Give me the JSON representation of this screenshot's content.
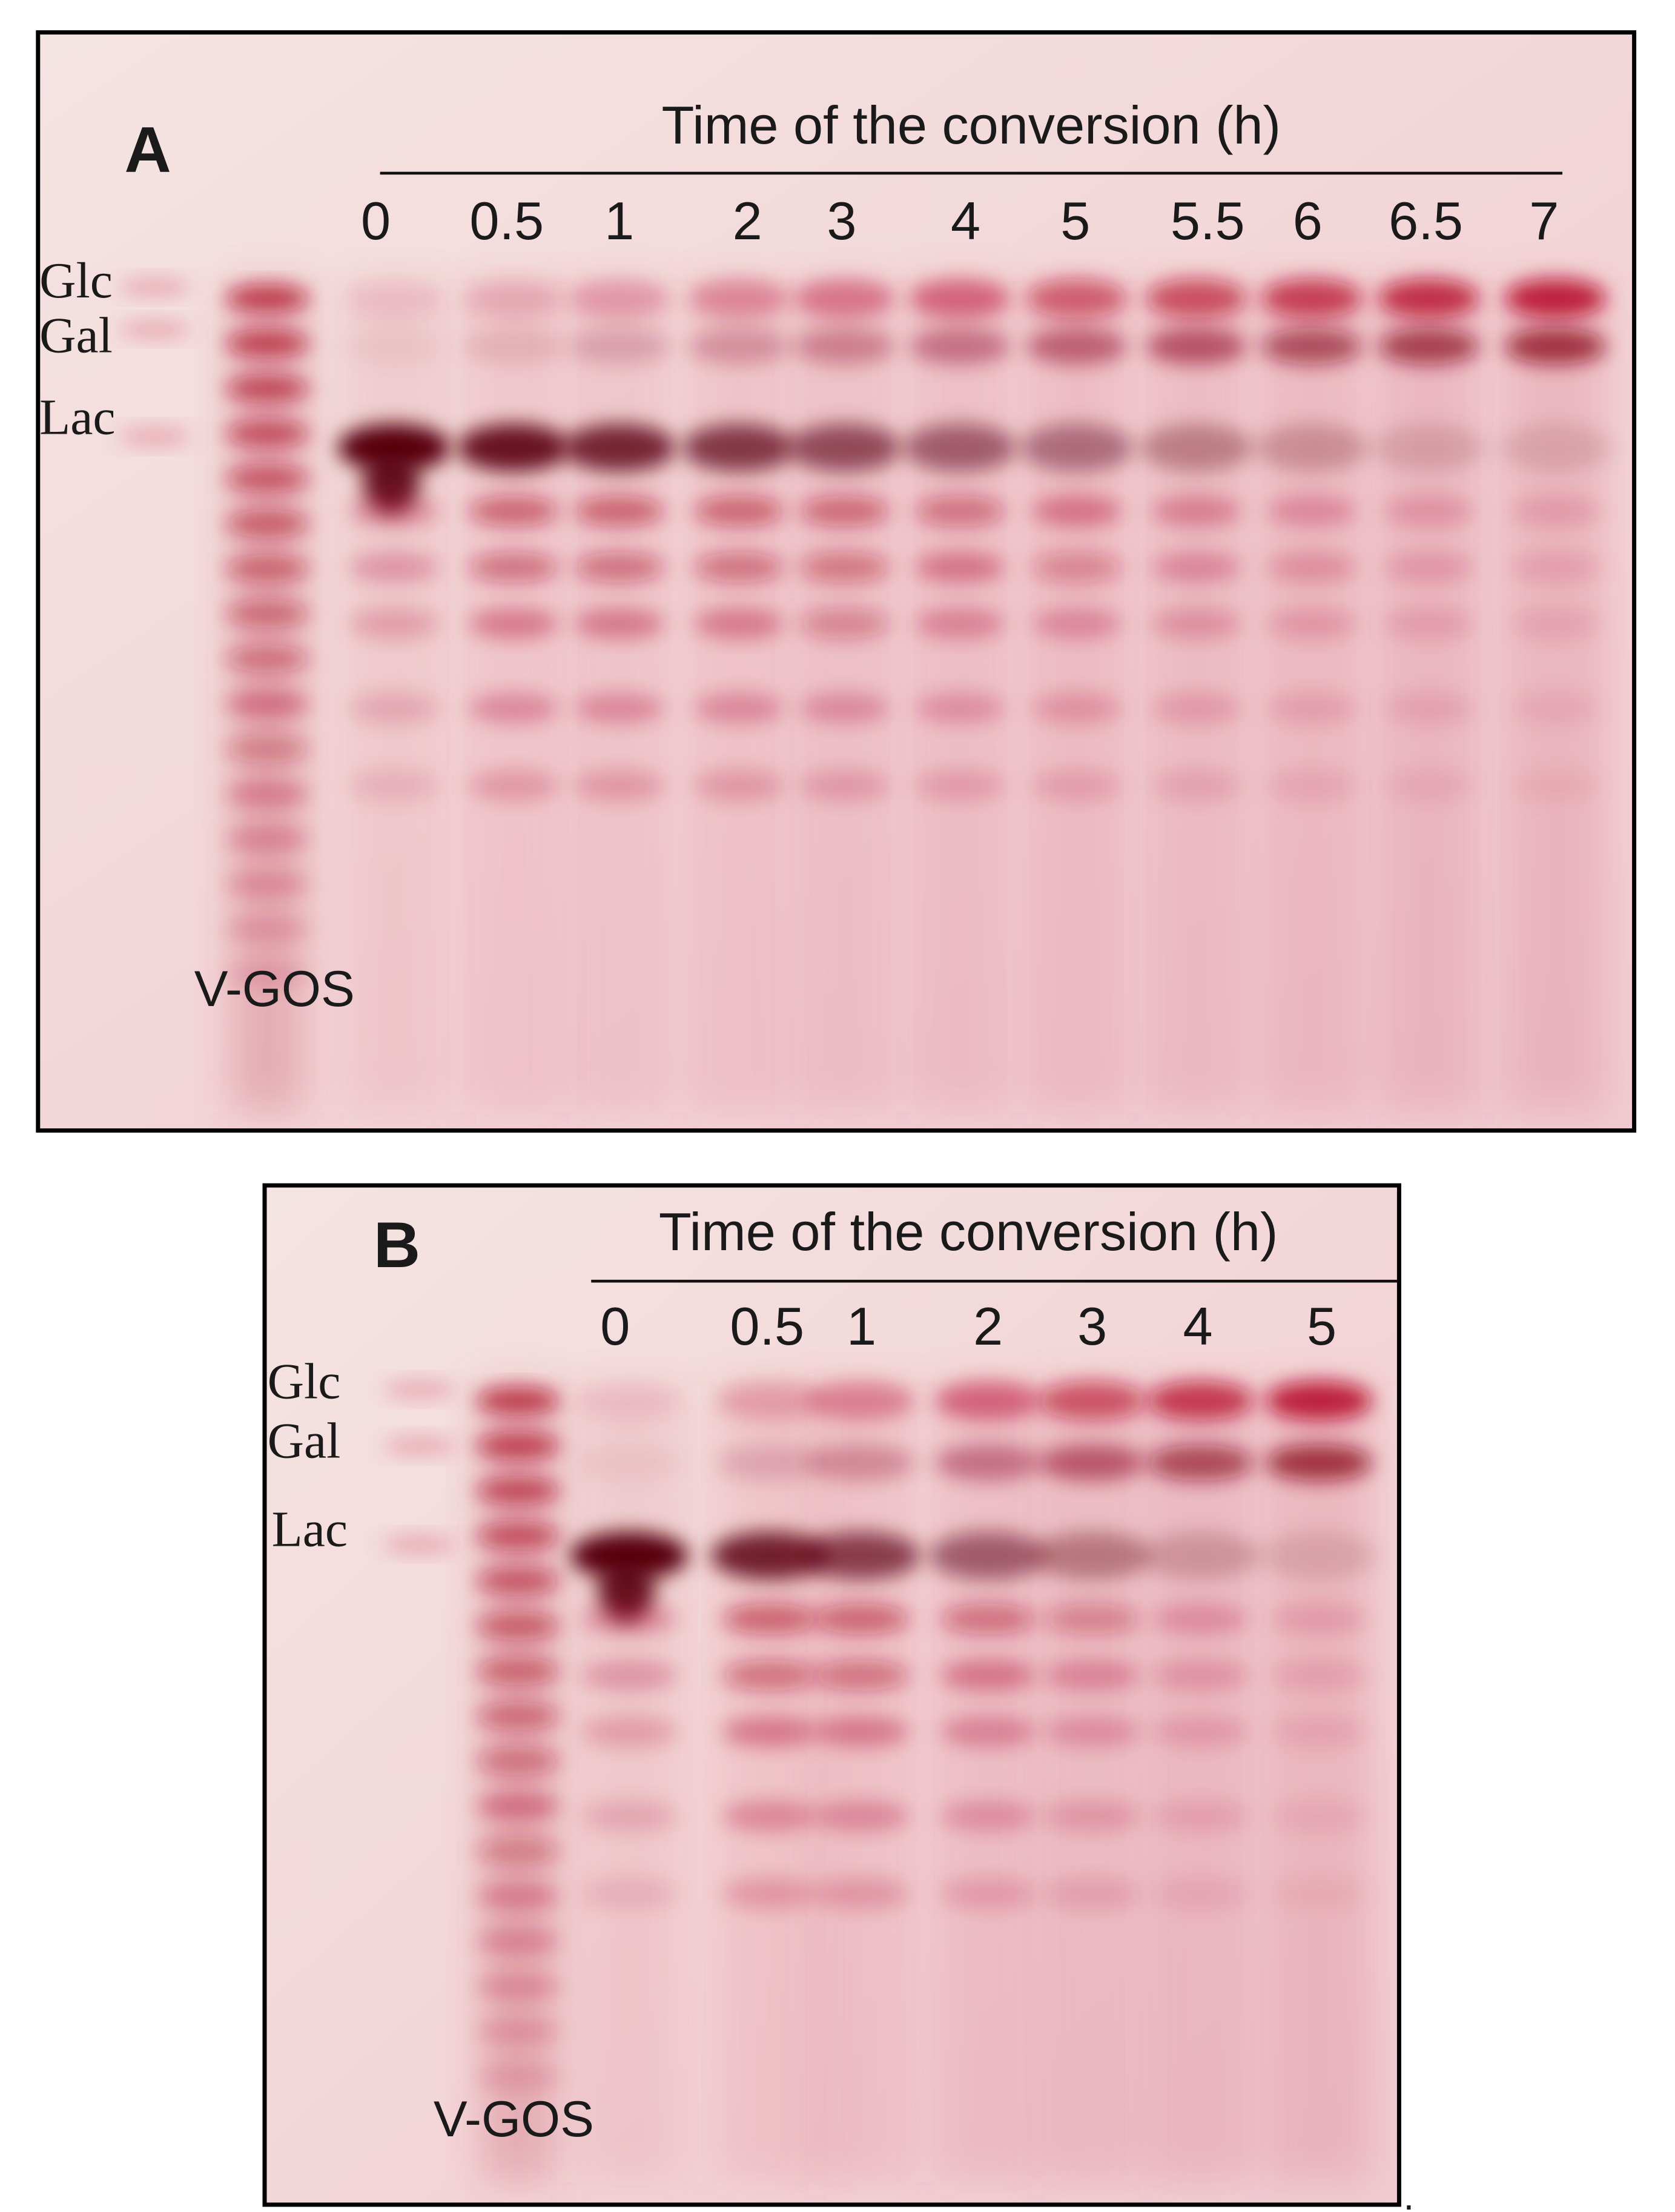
{
  "panel_a": {
    "label": "A",
    "header": "Time of the conversion  (h)",
    "lanes": [
      "0",
      "0.5",
      "1",
      "2",
      "3",
      "4",
      "5",
      "5.5",
      "6",
      "6.5",
      "7"
    ],
    "markers": [
      "Glc",
      "Gal",
      "Lac"
    ],
    "standard": "V-GOS"
  },
  "panel_b": {
    "label": "B",
    "header": "Time of the conversion  (h)",
    "lanes": [
      "0",
      "0.5",
      "1",
      "2",
      "3",
      "4",
      "5"
    ],
    "markers": [
      "Glc",
      "Gal",
      "Lac"
    ],
    "standard": "V-GOS"
  },
  "trailing_mark": "."
}
